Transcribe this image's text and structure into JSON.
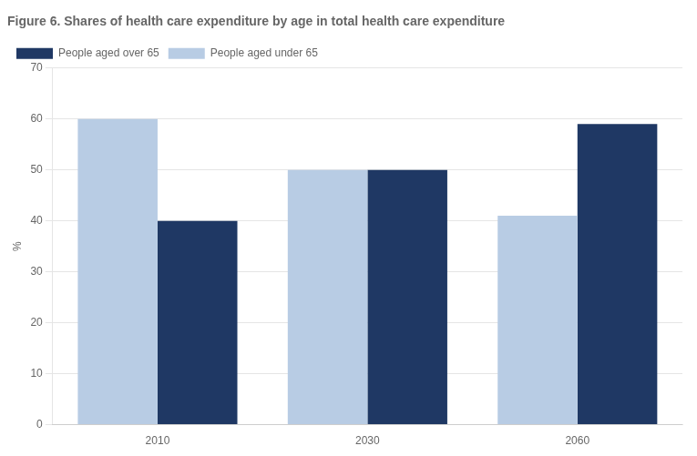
{
  "chart_data": {
    "type": "bar",
    "title": "Figure 6. Shares of health care expenditure by age in total health care expenditure",
    "categories": [
      "2010",
      "2030",
      "2060"
    ],
    "series": [
      {
        "name": "People aged under 65",
        "color": "#B8CCE4",
        "values": [
          60,
          50,
          41
        ]
      },
      {
        "name": "People aged over 65",
        "color": "#1F3864",
        "values": [
          40,
          50,
          59
        ]
      }
    ],
    "ylabel": "%",
    "ylim": [
      0,
      70
    ],
    "yticks": [
      0,
      10,
      20,
      30,
      40,
      50,
      60,
      70
    ],
    "grid": true,
    "legend": "upper left"
  }
}
